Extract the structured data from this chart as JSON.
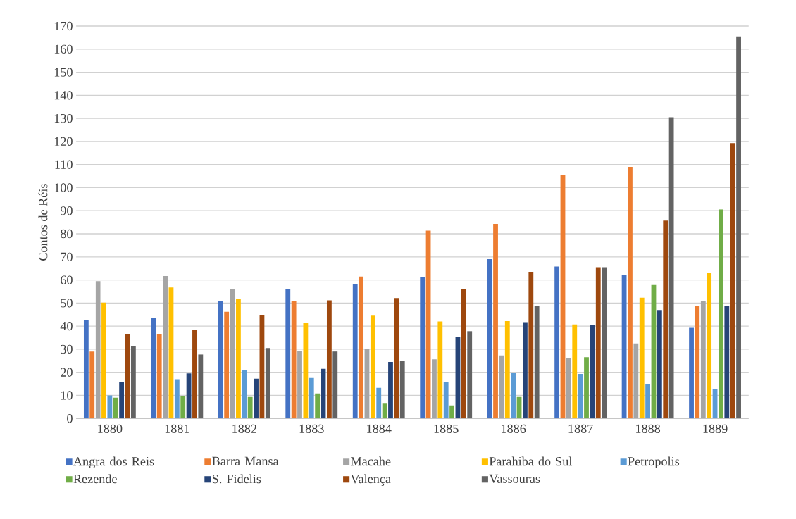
{
  "chart_data": {
    "type": "bar",
    "ylabel": "Contos de Réis",
    "categories": [
      "1880",
      "1881",
      "1882",
      "1883",
      "1884",
      "1885",
      "1886",
      "1887",
      "1888",
      "1889"
    ],
    "series": [
      {
        "name": "Angra dos Reis",
        "color": "#4472c4",
        "values": [
          42.5,
          43.7,
          51,
          56,
          58.3,
          61.2,
          69,
          65.8,
          62,
          39.3
        ]
      },
      {
        "name": "Barra Mansa",
        "color": "#ed7d31",
        "values": [
          29,
          36.6,
          46.2,
          51,
          61.5,
          81.4,
          84.3,
          105.4,
          109,
          48.7
        ]
      },
      {
        "name": "Macahe",
        "color": "#a5a5a5",
        "values": [
          59.5,
          61.7,
          56.2,
          29.2,
          30.2,
          25.6,
          27.3,
          26.3,
          32.5,
          51
        ]
      },
      {
        "name": "Parahiba do Sul",
        "color": "#ffc000",
        "values": [
          50.2,
          56.7,
          51.7,
          41.5,
          44.5,
          42,
          42.2,
          40.7,
          52.3,
          63
        ]
      },
      {
        "name": "Petropolis",
        "color": "#5b9bd5",
        "values": [
          10,
          17,
          21,
          17.5,
          13.3,
          15.6,
          19.7,
          19.3,
          15,
          12.9
        ]
      },
      {
        "name": "Rezende",
        "color": "#70ad47",
        "values": [
          9,
          9.8,
          9.3,
          10.8,
          6.7,
          5.6,
          9.3,
          26.5,
          57.8,
          90.6
        ]
      },
      {
        "name": "S. Fidelis",
        "color": "#264478",
        "values": [
          15.7,
          19.5,
          17.2,
          21.5,
          24.5,
          35.2,
          41.7,
          40.5,
          47,
          48.7
        ]
      },
      {
        "name": "Valença",
        "color": "#9e480e",
        "values": [
          36.5,
          38.5,
          44.8,
          51.2,
          52.2,
          56,
          63.5,
          65.5,
          85.7,
          119.3
        ]
      },
      {
        "name": "Vassouras",
        "color": "#636363",
        "values": [
          31.5,
          27.7,
          30.5,
          29,
          25,
          37.8,
          48.7,
          65.5,
          130.5,
          165.5
        ]
      }
    ],
    "ylim": [
      0,
      170
    ],
    "yticks": [
      0,
      10,
      20,
      30,
      40,
      50,
      60,
      70,
      80,
      90,
      100,
      110,
      120,
      130,
      140,
      150,
      160,
      170
    ],
    "grid": "y",
    "legend": "bottom"
  }
}
